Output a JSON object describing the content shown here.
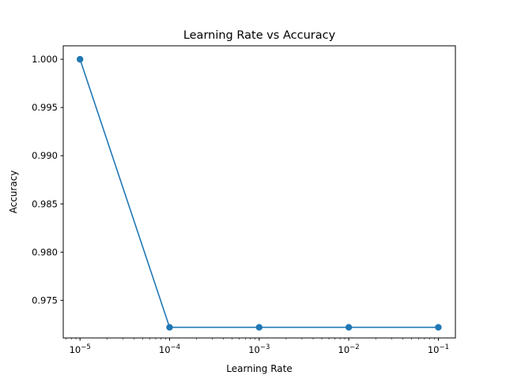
{
  "chart_data": {
    "type": "line",
    "title": "Learning Rate vs Accuracy",
    "xlabel": "Learning Rate",
    "ylabel": "Accuracy",
    "xscale": "log",
    "xlim": [
      6.5e-06,
      0.155
    ],
    "ylim": [
      0.9711,
      1.0014
    ],
    "xticks": [
      {
        "value": 1e-05,
        "base": "10",
        "exp": "−5"
      },
      {
        "value": 0.0001,
        "base": "10",
        "exp": "−4"
      },
      {
        "value": 0.001,
        "base": "10",
        "exp": "−3"
      },
      {
        "value": 0.01,
        "base": "10",
        "exp": "−2"
      },
      {
        "value": 0.1,
        "base": "10",
        "exp": "−1"
      }
    ],
    "yticks": [
      {
        "value": 0.975,
        "label": "0.975"
      },
      {
        "value": 0.98,
        "label": "0.980"
      },
      {
        "value": 0.985,
        "label": "0.985"
      },
      {
        "value": 0.99,
        "label": "0.990"
      },
      {
        "value": 0.995,
        "label": "0.995"
      },
      {
        "value": 1.0,
        "label": "1.000"
      }
    ],
    "grid": false,
    "series": [
      {
        "color": "#1f77b4",
        "marker": "circle",
        "x": [
          1e-05,
          0.0001,
          0.001,
          0.01,
          0.1
        ],
        "y": [
          1.0,
          0.9722,
          0.9722,
          0.9722,
          0.9722
        ]
      }
    ]
  }
}
